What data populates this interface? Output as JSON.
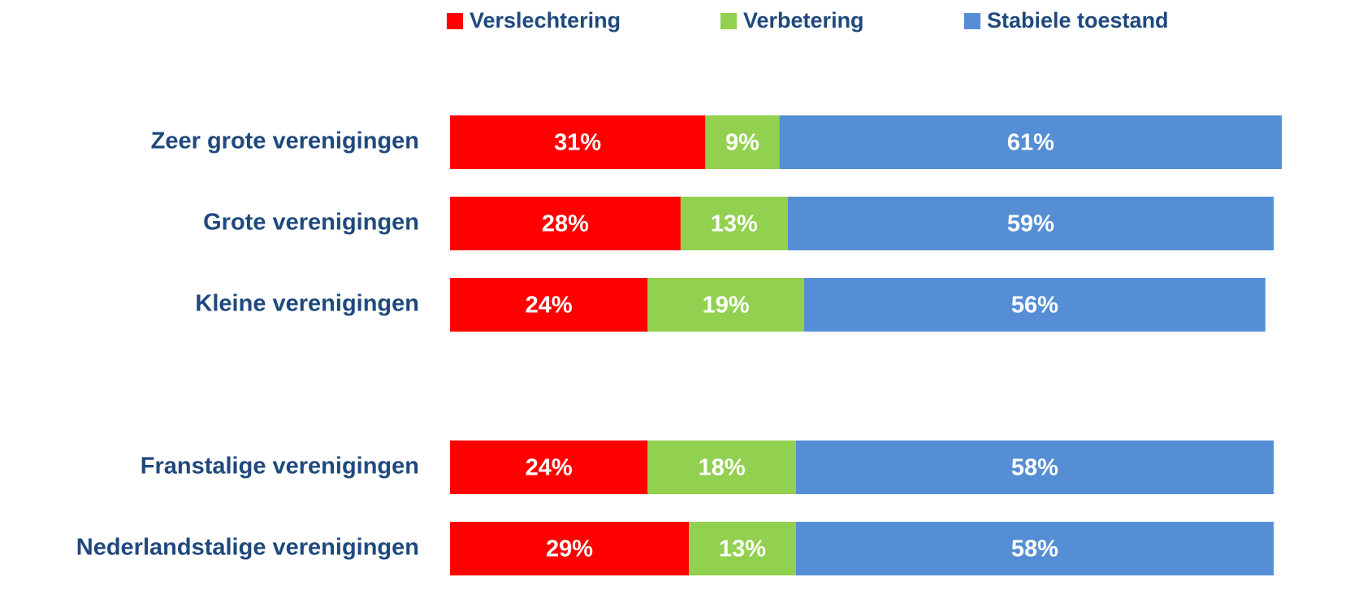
{
  "chart_data": {
    "type": "stacked-barh",
    "categories": [
      "Zeer grote verenigingen",
      "Grote verenigingen",
      "Kleine verenigingen",
      null,
      "Franstalige verenigingen",
      "Nederlandstalige verenigingen"
    ],
    "series": [
      {
        "name": "Verslechtering",
        "color": "#ff0000",
        "values": [
          31,
          28,
          24,
          null,
          24,
          29
        ],
        "value_labels": [
          "31%",
          "28%",
          "24%",
          null,
          "24%",
          "29%"
        ]
      },
      {
        "name": "Verbetering",
        "color": "#92d050",
        "values": [
          9,
          13,
          19,
          null,
          18,
          13
        ],
        "value_labels": [
          "9%",
          "13%",
          "19%",
          null,
          "18%",
          "13%"
        ]
      },
      {
        "name": "Stabiele toestand",
        "color": "#558ed5",
        "values": [
          61,
          59,
          56,
          null,
          58,
          58
        ],
        "value_labels": [
          "61%",
          "59%",
          "56%",
          null,
          "58%",
          "58%"
        ]
      }
    ],
    "xlim": [
      0,
      100
    ],
    "legend": "top"
  }
}
